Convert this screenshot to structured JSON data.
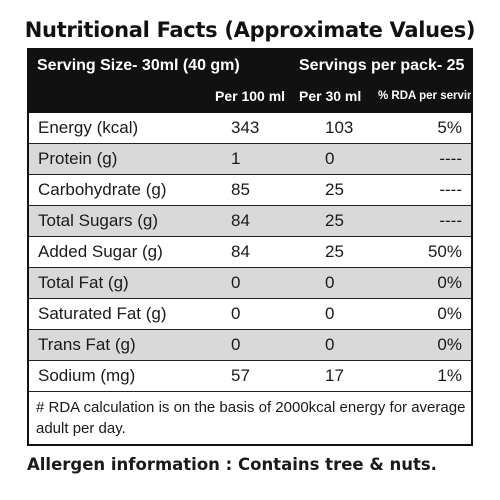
{
  "title": "Nutritional Facts (Approximate Values)",
  "header": {
    "serving_size": "Serving Size-  30ml (40 gm)",
    "servings_per_pack": "Servings per pack- 25",
    "col_per100": "Per 100 ml",
    "col_per30": "Per 30 ml",
    "col_rda": "% RDA per serving"
  },
  "rows": [
    {
      "nutrient": "Energy (kcal)",
      "per100": "343",
      "per30": "103",
      "rda": "5%",
      "shaded": false
    },
    {
      "nutrient": "Protein (g)",
      "per100": "1",
      "per30": "0",
      "rda": "----",
      "shaded": true
    },
    {
      "nutrient": "Carbohydrate (g)",
      "per100": "85",
      "per30": "25",
      "rda": "----",
      "shaded": false
    },
    {
      "nutrient": "Total Sugars (g)",
      "per100": "84",
      "per30": "25",
      "rda": "----",
      "shaded": true
    },
    {
      "nutrient": "Added Sugar (g)",
      "per100": "84",
      "per30": "25",
      "rda": "50%",
      "shaded": false
    },
    {
      "nutrient": "Total Fat (g)",
      "per100": "0",
      "per30": "0",
      "rda": "0%",
      "shaded": true
    },
    {
      "nutrient": "Saturated Fat (g)",
      "per100": "0",
      "per30": "0",
      "rda": "0%",
      "shaded": false
    },
    {
      "nutrient": "Trans Fat (g)",
      "per100": "0",
      "per30": "0",
      "rda": "0%",
      "shaded": true
    },
    {
      "nutrient": "Sodium (mg)",
      "per100": "57",
      "per30": "17",
      "rda": "1%",
      "shaded": false
    }
  ],
  "footnote": "# RDA calculation is on the basis of 2000kcal energy for average adult per day.",
  "allergen": "Allergen information : Contains tree & nuts."
}
